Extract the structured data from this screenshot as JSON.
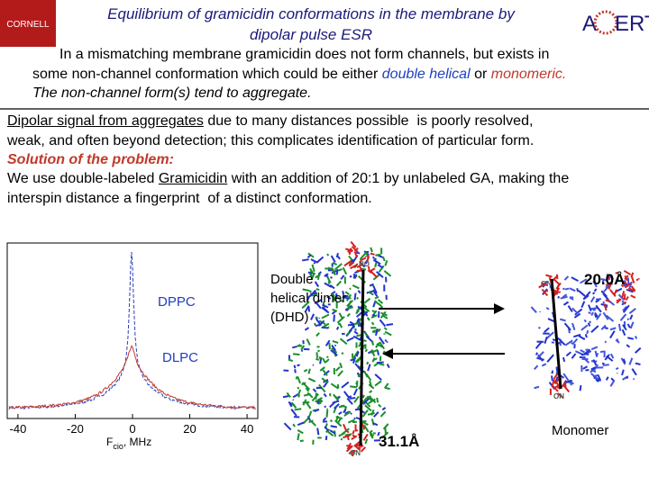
{
  "logo_left": "CORNELL",
  "logo_right": [
    "A",
    "ERT"
  ],
  "title": [
    "Equilibrium of gramicidin conformations in the membrane by",
    "dipolar pulse ESR"
  ],
  "intro": [
    [
      "In a mismatching membrane gramicidin does not form channels, but exists in"
    ],
    [
      "some non-channel conformation which could be either ",
      "double helical",
      " or ",
      "monomeric."
    ],
    [
      "The non-channel form(s) tend to aggregate."
    ]
  ],
  "body": [
    [
      "Dipolar signal from aggregates",
      " due to many distances possible  is poorly resolved,"
    ],
    [
      "weak, and often beyond detection; this complicates identification of particular form."
    ],
    [
      "Solution of the problem:"
    ],
    [
      "We use double-labeled ",
      "Gramicidin",
      " with an addition of 20:1 by unlabeled GA, making the"
    ],
    [
      "interspin distance a fingerprint  of a distinct conformation."
    ]
  ],
  "spectrum": {
    "xlim": [
      -43.75,
      43.75
    ],
    "xticks": [
      -40,
      -20,
      0,
      20,
      40
    ],
    "xlabel": [
      "F",
      "cio",
      ", MHz"
    ],
    "labels": [
      "DPPC",
      "DLPC"
    ]
  },
  "dimer": {
    "label": [
      "Double",
      "helical dimer",
      "(DHD)"
    ],
    "distance": "31.1Å",
    "spin_labels": [
      "NO",
      "ON"
    ]
  },
  "monomer": {
    "label": "Monomer",
    "distance": "20.0Å",
    "spin_labels": [
      "ON",
      "ON"
    ]
  }
}
